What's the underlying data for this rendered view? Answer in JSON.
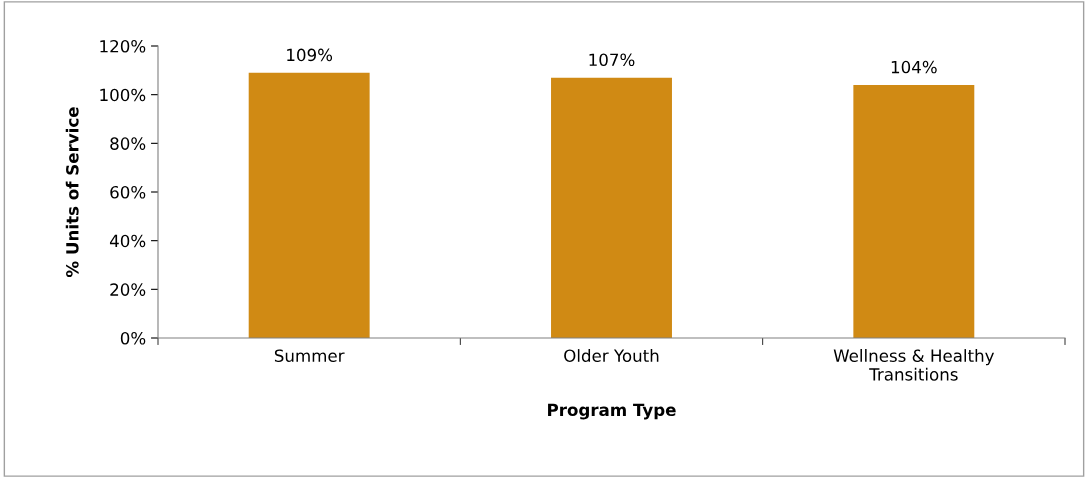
{
  "chart_data": {
    "type": "bar",
    "xlabel": "Program Type",
    "ylabel": "% Units of Service",
    "categories": [
      "Summer",
      "Older Youth",
      "Wellness & Healthy\nTransitions"
    ],
    "values": [
      109,
      107,
      104
    ],
    "value_labels": [
      "109%",
      "107%",
      "104%"
    ],
    "color": "#d08a14",
    "ylim": [
      0,
      120
    ],
    "yticks": [
      {
        "value": 0,
        "label": "0%"
      },
      {
        "value": 20,
        "label": "20%"
      },
      {
        "value": 40,
        "label": "40%"
      },
      {
        "value": 60,
        "label": "60%"
      },
      {
        "value": 80,
        "label": "80%"
      },
      {
        "value": 100,
        "label": "100%"
      },
      {
        "value": 120,
        "label": "120%"
      }
    ],
    "grid": false,
    "legend": false
  }
}
